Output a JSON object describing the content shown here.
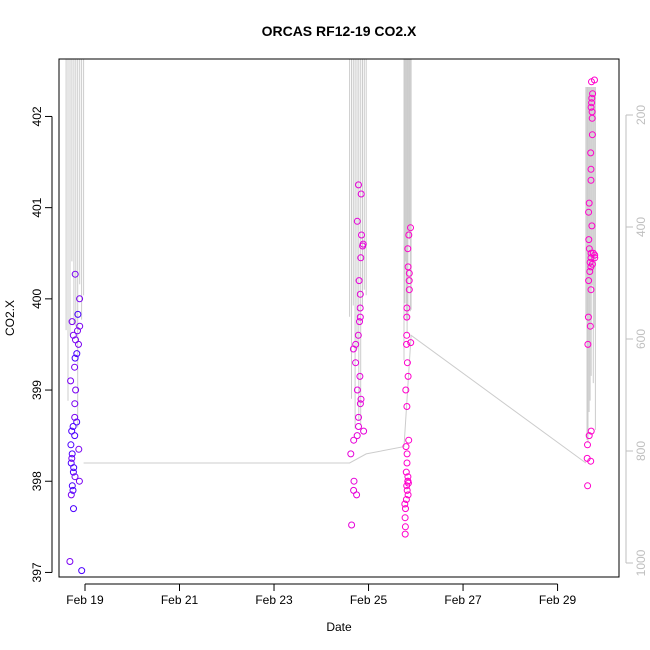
{
  "chart_data": {
    "type": "scatter",
    "title": "ORCAS RF12-19 CO2.X",
    "xlabel": "Date",
    "ylabel": "CO2.X",
    "x_ticks": [
      "Feb 19",
      "Feb 21",
      "Feb 23",
      "Feb 25",
      "Feb 27",
      "Feb 29"
    ],
    "x_tick_days": [
      19,
      21,
      23,
      25,
      27,
      29
    ],
    "xlim_days": [
      18.45,
      30.3
    ],
    "y_ticks": [
      397,
      398,
      399,
      400,
      401,
      402
    ],
    "ylim": [
      396.95,
      402.63
    ],
    "secondary_axis": {
      "ticks": [
        200,
        400,
        600,
        800,
        1000
      ],
      "lim_reversed": [
        1025,
        100
      ],
      "color": "#bfbfbf"
    },
    "point_colors": [
      "#4b00ff",
      "#7a00f2",
      "#b300e6",
      "#e600d9",
      "#ff00cc"
    ],
    "line_color": "#cccccc",
    "flights": [
      {
        "day_range": [
          18.6,
          18.97
        ],
        "color_index": 0,
        "values": [
          397.12,
          397.7,
          397.85,
          397.9,
          397.95,
          398.1,
          398.15,
          398.2,
          398.25,
          398.3,
          398.4,
          398.5,
          398.55,
          398.6,
          398.65,
          398.7,
          399.0,
          399.1,
          399.25,
          399.4,
          399.55,
          399.6,
          399.7,
          399.75,
          399.83,
          400.0,
          400.27,
          397.02,
          398.05,
          398.0,
          398.35,
          398.85,
          399.35,
          399.5,
          399.65
        ]
      },
      {
        "day_range": [
          24.6,
          24.95
        ],
        "color_index": 3,
        "values": [
          397.52,
          397.85,
          397.9,
          398.0,
          398.3,
          398.45,
          398.5,
          398.6,
          398.7,
          398.85,
          399.0,
          399.15,
          399.3,
          399.45,
          399.5,
          399.6,
          399.75,
          399.9,
          400.05,
          400.2,
          400.45,
          400.6,
          400.7,
          400.85,
          401.15,
          401.25,
          400.58,
          398.9,
          399.8,
          398.55
        ]
      },
      {
        "day_range": [
          25.75,
          25.9
        ],
        "color_index": 4,
        "values": [
          397.42,
          397.5,
          397.6,
          397.7,
          397.75,
          397.8,
          397.85,
          397.9,
          397.95,
          398.0,
          398.05,
          398.1,
          398.2,
          398.3,
          398.38,
          398.45,
          398.82,
          399.0,
          399.15,
          399.3,
          399.5,
          399.6,
          399.8,
          399.9,
          400.1,
          400.2,
          400.28,
          400.35,
          400.55,
          400.7,
          400.78,
          397.98,
          398.0,
          399.52
        ]
      },
      {
        "day_range": [
          29.6,
          29.8
        ],
        "color_index": 4,
        "values": [
          397.95,
          398.22,
          398.25,
          398.4,
          398.5,
          398.55,
          399.5,
          399.7,
          399.8,
          400.1,
          400.2,
          400.3,
          400.35,
          400.4,
          400.45,
          400.5,
          400.55,
          400.65,
          400.8,
          400.95,
          401.05,
          401.3,
          401.42,
          401.6,
          401.8,
          401.98,
          402.05,
          402.1,
          402.15,
          402.2,
          402.25,
          402.38,
          402.4,
          400.48,
          400.5,
          400.38,
          400.45
        ]
      }
    ],
    "connector": {
      "day": [
        18.97,
        24.6,
        24.95,
        25.75,
        25.9,
        29.6
      ],
      "value": [
        398.2,
        398.2,
        398.3,
        398.38,
        399.6,
        398.2
      ]
    },
    "secondary_spikes": [
      {
        "day_range": [
          18.6,
          18.97
        ],
        "from": 100,
        "to": 820
      },
      {
        "day_range": [
          24.6,
          24.95
        ],
        "from": 100,
        "to": 830
      },
      {
        "day_range": [
          25.75,
          25.9
        ],
        "from": 100,
        "to": 670
      },
      {
        "day_range": [
          29.6,
          29.8
        ],
        "from": 150,
        "to": 840
      }
    ]
  }
}
